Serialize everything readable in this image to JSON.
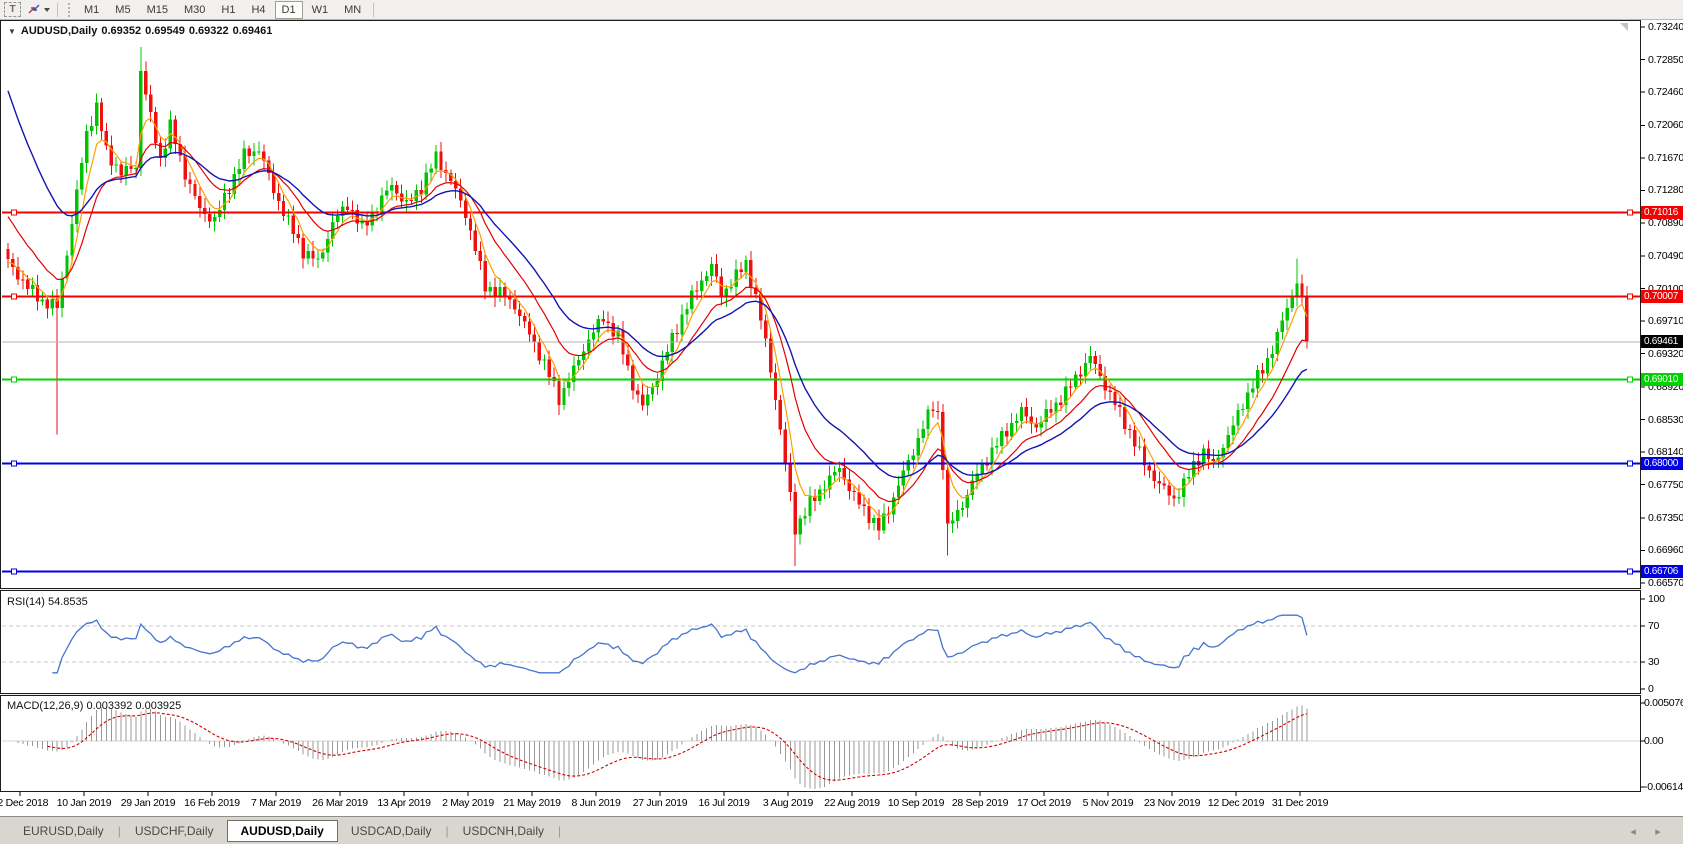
{
  "toolbar": {
    "text_tool": "T",
    "timeframes": [
      "M1",
      "M5",
      "M15",
      "M30",
      "H1",
      "H4",
      "D1",
      "W1",
      "MN"
    ],
    "active_timeframe": "D1"
  },
  "icons": {
    "header_collapse": "▼",
    "toolbar_caret": "▾",
    "tab_scroll_left": "◂",
    "tab_scroll_right": "▸"
  },
  "chart_header": {
    "symbol": "AUDUSD,Daily",
    "open": "0.69352",
    "high": "0.69549",
    "low": "0.69322",
    "close": "0.69461"
  },
  "price_axis": {
    "ticks": [
      "0.73240",
      "0.72850",
      "0.72460",
      "0.72060",
      "0.71670",
      "0.71280",
      "0.70890",
      "0.70490",
      "0.70100",
      "0.69710",
      "0.69320",
      "0.68920",
      "0.68530",
      "0.68140",
      "0.67750",
      "0.67350",
      "0.66960",
      "0.66570"
    ],
    "badges": [
      {
        "text": "0.71016",
        "price": 0.71016,
        "bg": "#f60000",
        "fg": "#ffffff"
      },
      {
        "text": "0.70007",
        "price": 0.70007,
        "bg": "#f60000",
        "fg": "#ffffff"
      },
      {
        "text": "0.69461",
        "price": 0.69461,
        "bg": "#000000",
        "fg": "#ffffff"
      },
      {
        "text": "0.69010",
        "price": 0.6901,
        "bg": "#00d200",
        "fg": "#ffffff"
      },
      {
        "text": "0.68000",
        "price": 0.68,
        "bg": "#0000e1",
        "fg": "#ffffff"
      },
      {
        "text": "0.66706",
        "price": 0.66706,
        "bg": "#0000e1",
        "fg": "#ffffff"
      }
    ]
  },
  "time_axis": {
    "labels": [
      "22 Dec 2018",
      "10 Jan 2019",
      "29 Jan 2019",
      "16 Feb 2019",
      "7 Mar 2019",
      "26 Mar 2019",
      "13 Apr 2019",
      "2 May 2019",
      "21 May 2019",
      "8 Jun 2019",
      "27 Jun 2019",
      "16 Jul 2019",
      "3 Aug 2019",
      "22 Aug 2019",
      "10 Sep 2019",
      "28 Sep 2019",
      "17 Oct 2019",
      "5 Nov 2019",
      "23 Nov 2019",
      "12 Dec 2019",
      "31 Dec 2019"
    ]
  },
  "rsi_panel": {
    "label": "RSI(14) 54.8535",
    "ticks": [
      {
        "text": "100",
        "value": 100
      },
      {
        "text": "70",
        "value": 70
      },
      {
        "text": "30",
        "value": 30
      },
      {
        "text": "0",
        "value": 0
      }
    ],
    "levels": [
      70,
      30
    ]
  },
  "macd_panel": {
    "label": "MACD(12,26,9) 0.003392 0.003925",
    "ticks": [
      {
        "text": "0.005076",
        "value": 0.005076
      },
      {
        "text": "0.00",
        "value": 0
      },
      {
        "text": "-0.006148",
        "value": -0.006148
      }
    ]
  },
  "tabs": {
    "items": [
      "EURUSD,Daily",
      "USDCHF,Daily",
      "AUDUSD,Daily",
      "USDCAD,Daily",
      "USDCNH,Daily"
    ],
    "active": "AUDUSD,Daily"
  },
  "chart_data": {
    "type": "candlestick",
    "symbol": "AUDUSD",
    "period": "Daily",
    "last_bar": {
      "open": 0.69352,
      "high": 0.69549,
      "low": 0.69322,
      "close": 0.69461
    },
    "price_range": {
      "top": 0.73312,
      "bottom": 0.66509
    },
    "num_candles": 265,
    "close_anchors": [
      [
        0,
        0.7042
      ],
      [
        4,
        0.7012
      ],
      [
        7,
        0.6995
      ],
      [
        10,
        0.6988
      ],
      [
        13,
        0.7088
      ],
      [
        16,
        0.7198
      ],
      [
        18,
        0.7228
      ],
      [
        20,
        0.7175
      ],
      [
        23,
        0.7148
      ],
      [
        26,
        0.7158
      ],
      [
        27,
        0.7272
      ],
      [
        29,
        0.7215
      ],
      [
        31,
        0.7165
      ],
      [
        33,
        0.7205
      ],
      [
        36,
        0.7148
      ],
      [
        39,
        0.7105
      ],
      [
        42,
        0.7092
      ],
      [
        45,
        0.7132
      ],
      [
        48,
        0.717
      ],
      [
        51,
        0.7178
      ],
      [
        54,
        0.7128
      ],
      [
        57,
        0.709
      ],
      [
        60,
        0.7055
      ],
      [
        63,
        0.7042
      ],
      [
        66,
        0.7088
      ],
      [
        69,
        0.7112
      ],
      [
        72,
        0.7082
      ],
      [
        75,
        0.7108
      ],
      [
        78,
        0.7135
      ],
      [
        81,
        0.711
      ],
      [
        84,
        0.7132
      ],
      [
        87,
        0.7168
      ],
      [
        90,
        0.714
      ],
      [
        93,
        0.71
      ],
      [
        95,
        0.7058
      ],
      [
        97,
        0.7012
      ],
      [
        100,
        0.7005
      ],
      [
        103,
        0.699
      ],
      [
        106,
        0.6955
      ],
      [
        109,
        0.692
      ],
      [
        112,
        0.6878
      ],
      [
        115,
        0.6912
      ],
      [
        118,
        0.695
      ],
      [
        121,
        0.6975
      ],
      [
        124,
        0.6952
      ],
      [
        127,
        0.6895
      ],
      [
        129,
        0.6868
      ],
      [
        132,
        0.6905
      ],
      [
        135,
        0.695
      ],
      [
        138,
        0.699
      ],
      [
        141,
        0.702
      ],
      [
        143,
        0.7038
      ],
      [
        145,
        0.7002
      ],
      [
        147,
        0.7018
      ],
      [
        150,
        0.704
      ],
      [
        152,
        0.7
      ],
      [
        154,
        0.6945
      ],
      [
        156,
        0.688
      ],
      [
        158,
        0.68
      ],
      [
        160,
        0.6722
      ],
      [
        163,
        0.6752
      ],
      [
        166,
        0.6775
      ],
      [
        169,
        0.6795
      ],
      [
        172,
        0.676
      ],
      [
        175,
        0.6738
      ],
      [
        177,
        0.6722
      ],
      [
        179,
        0.6745
      ],
      [
        181,
        0.6775
      ],
      [
        184,
        0.6815
      ],
      [
        186,
        0.6845
      ],
      [
        188,
        0.6868
      ],
      [
        189,
        0.686
      ],
      [
        190,
        0.68
      ],
      [
        191,
        0.6722
      ],
      [
        194,
        0.6752
      ],
      [
        197,
        0.6788
      ],
      [
        200,
        0.6815
      ],
      [
        203,
        0.684
      ],
      [
        206,
        0.6862
      ],
      [
        209,
        0.6845
      ],
      [
        212,
        0.6865
      ],
      [
        215,
        0.6885
      ],
      [
        218,
        0.6912
      ],
      [
        220,
        0.6928
      ],
      [
        222,
        0.6905
      ],
      [
        225,
        0.6872
      ],
      [
        228,
        0.6838
      ],
      [
        231,
        0.68
      ],
      [
        234,
        0.6775
      ],
      [
        237,
        0.6758
      ],
      [
        239,
        0.6775
      ],
      [
        241,
        0.6798
      ],
      [
        243,
        0.6815
      ],
      [
        245,
        0.6798
      ],
      [
        247,
        0.6822
      ],
      [
        249,
        0.6845
      ],
      [
        251,
        0.6872
      ],
      [
        253,
        0.6895
      ],
      [
        255,
        0.6912
      ],
      [
        257,
        0.6938
      ],
      [
        259,
        0.697
      ],
      [
        261,
        0.7002
      ],
      [
        262,
        0.7021
      ],
      [
        263,
        0.6996
      ],
      [
        264,
        0.69461
      ]
    ],
    "special_wicks": [
      {
        "index": 10,
        "low": 0.6835
      },
      {
        "index": 18,
        "high": 0.7242
      },
      {
        "index": 27,
        "high": 0.73
      },
      {
        "index": 160,
        "low": 0.6677
      },
      {
        "index": 191,
        "low": 0.669
      },
      {
        "index": 220,
        "high": 0.6941
      },
      {
        "index": 262,
        "high": 0.7046
      }
    ],
    "hlines": [
      {
        "price": 0.71016,
        "color": "#f60000",
        "width": 2
      },
      {
        "price": 0.70007,
        "color": "#f60000",
        "width": 2
      },
      {
        "price": 0.6901,
        "color": "#00d200",
        "width": 2
      },
      {
        "price": 0.68,
        "color": "#0000e1",
        "width": 2
      },
      {
        "price": 0.66706,
        "color": "#0000e1",
        "width": 2
      }
    ],
    "current_price_line": {
      "price": 0.69461,
      "color": "#b4b4b4"
    },
    "moving_averages": [
      {
        "name": "fast",
        "period": 5,
        "seed": 0.704,
        "color": "#ff9e00",
        "width": 1.2
      },
      {
        "name": "medium",
        "period": 13,
        "seed": 0.7105,
        "color": "#e40000",
        "width": 1.2
      },
      {
        "name": "slow",
        "period": 24,
        "seed": 0.7265,
        "color": "#1414b4",
        "width": 1.4
      }
    ],
    "rsi": {
      "period": 14,
      "current_value": 54.8535,
      "range": [
        0,
        100
      ],
      "levels": [
        30,
        70
      ],
      "line_color": "#4573cf",
      "level_color": "#c8c8c8"
    },
    "macd": {
      "fast": 12,
      "slow": 26,
      "signal_period": 9,
      "macd_value": 0.003392,
      "signal_value": 0.003925,
      "scale_max": 0.005076,
      "scale_min": -0.006148,
      "hist_color": "#9a9a9a",
      "signal_color": "#d40000"
    },
    "colors": {
      "up": "#00c400",
      "down": "#ef1010"
    },
    "synth": {
      "w1": 0.00055,
      "f1": 2.9,
      "w2": 0.00035,
      "f2": 1.31,
      "wick_base": 0.0004,
      "wick_amp": 0.0008
    }
  }
}
